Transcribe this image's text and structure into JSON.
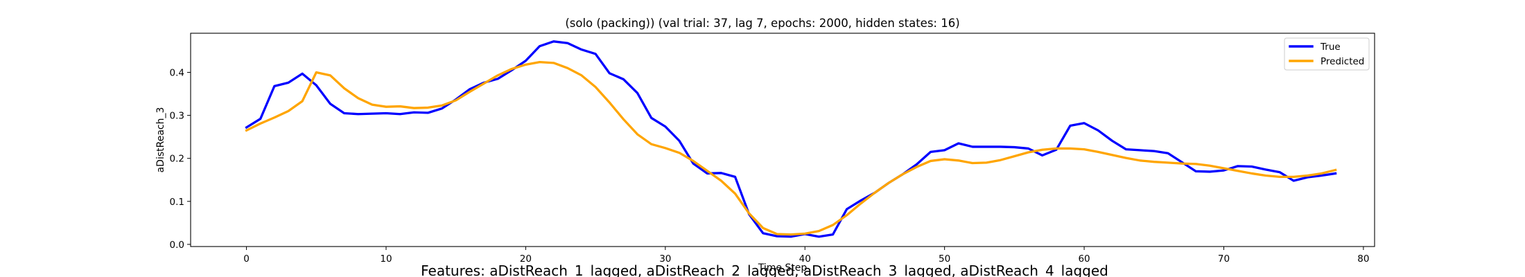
{
  "chart_data": {
    "type": "line",
    "title": "(solo (packing)) (val trial: 37, lag 7, epochs: 2000, hidden states: 16)",
    "xlabel": "Time Step",
    "ylabel": "aDistReach_3",
    "xlim": [
      -4,
      80.8
    ],
    "ylim": [
      -0.005,
      0.491
    ],
    "xticks": [
      0,
      10,
      20,
      30,
      40,
      50,
      60,
      70,
      80
    ],
    "yticks": [
      0.0,
      0.1,
      0.2,
      0.3,
      0.4
    ],
    "ytick_labels": [
      "0.0",
      "0.1",
      "0.2",
      "0.3",
      "0.4"
    ],
    "grid": false,
    "legend_position": "top-right",
    "series": [
      {
        "name": "True",
        "color": "#0000ff",
        "values": [
          0.272,
          0.292,
          0.368,
          0.376,
          0.397,
          0.37,
          0.327,
          0.305,
          0.303,
          0.304,
          0.305,
          0.303,
          0.307,
          0.306,
          0.316,
          0.337,
          0.361,
          0.376,
          0.385,
          0.405,
          0.427,
          0.461,
          0.472,
          0.468,
          0.453,
          0.443,
          0.398,
          0.384,
          0.352,
          0.294,
          0.274,
          0.241,
          0.188,
          0.165,
          0.166,
          0.157,
          0.07,
          0.026,
          0.019,
          0.018,
          0.024,
          0.018,
          0.023,
          0.082,
          0.102,
          0.12,
          0.143,
          0.163,
          0.186,
          0.215,
          0.219,
          0.235,
          0.227,
          0.227,
          0.227,
          0.226,
          0.223,
          0.207,
          0.22,
          0.276,
          0.282,
          0.265,
          0.241,
          0.221,
          0.219,
          0.217,
          0.212,
          0.191,
          0.17,
          0.169,
          0.172,
          0.182,
          0.181,
          0.174,
          0.168,
          0.148,
          0.156,
          0.16,
          0.165
        ]
      },
      {
        "name": "Predicted",
        "color": "#ffa500",
        "values": [
          0.265,
          0.281,
          0.295,
          0.31,
          0.333,
          0.4,
          0.393,
          0.363,
          0.34,
          0.325,
          0.32,
          0.321,
          0.317,
          0.318,
          0.323,
          0.335,
          0.355,
          0.374,
          0.393,
          0.408,
          0.418,
          0.424,
          0.422,
          0.41,
          0.393,
          0.366,
          0.33,
          0.291,
          0.256,
          0.233,
          0.224,
          0.213,
          0.194,
          0.171,
          0.148,
          0.118,
          0.072,
          0.038,
          0.024,
          0.023,
          0.025,
          0.031,
          0.045,
          0.068,
          0.095,
          0.12,
          0.143,
          0.163,
          0.18,
          0.194,
          0.198,
          0.195,
          0.189,
          0.19,
          0.196,
          0.205,
          0.214,
          0.22,
          0.223,
          0.223,
          0.221,
          0.215,
          0.208,
          0.201,
          0.195,
          0.192,
          0.19,
          0.188,
          0.187,
          0.183,
          0.177,
          0.171,
          0.165,
          0.16,
          0.157,
          0.157,
          0.16,
          0.165,
          0.173
        ]
      }
    ]
  },
  "footer": {
    "features": "Features: aDistReach_1_lagged, aDistReach_2_lagged, aDistReach_3_lagged, aDistReach_4_lagged"
  }
}
